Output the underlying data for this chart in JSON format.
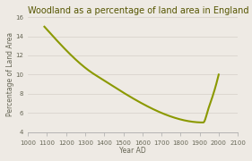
{
  "title": "Woodland as a percentage of land area in England",
  "xlabel": "Year AD",
  "ylabel": "Percentage of Land Area",
  "x_data": [
    1086,
    1350,
    1919,
    1947,
    1980,
    2000
  ],
  "y_data": [
    15.0,
    10.0,
    5.0,
    6.5,
    8.5,
    10.0
  ],
  "line_color": "#8B9900",
  "xlim": [
    1000,
    2100
  ],
  "ylim": [
    4,
    16
  ],
  "xticks": [
    1000,
    1100,
    1200,
    1300,
    1400,
    1500,
    1600,
    1700,
    1800,
    1900,
    2000,
    2100
  ],
  "yticks": [
    4,
    6,
    8,
    10,
    12,
    14,
    16
  ],
  "background_color": "#eeeae4",
  "title_color": "#555500",
  "grid_color": "#d5d0c8",
  "title_fontsize": 7.0,
  "label_fontsize": 5.5,
  "tick_fontsize": 5.0,
  "linewidth": 1.5
}
